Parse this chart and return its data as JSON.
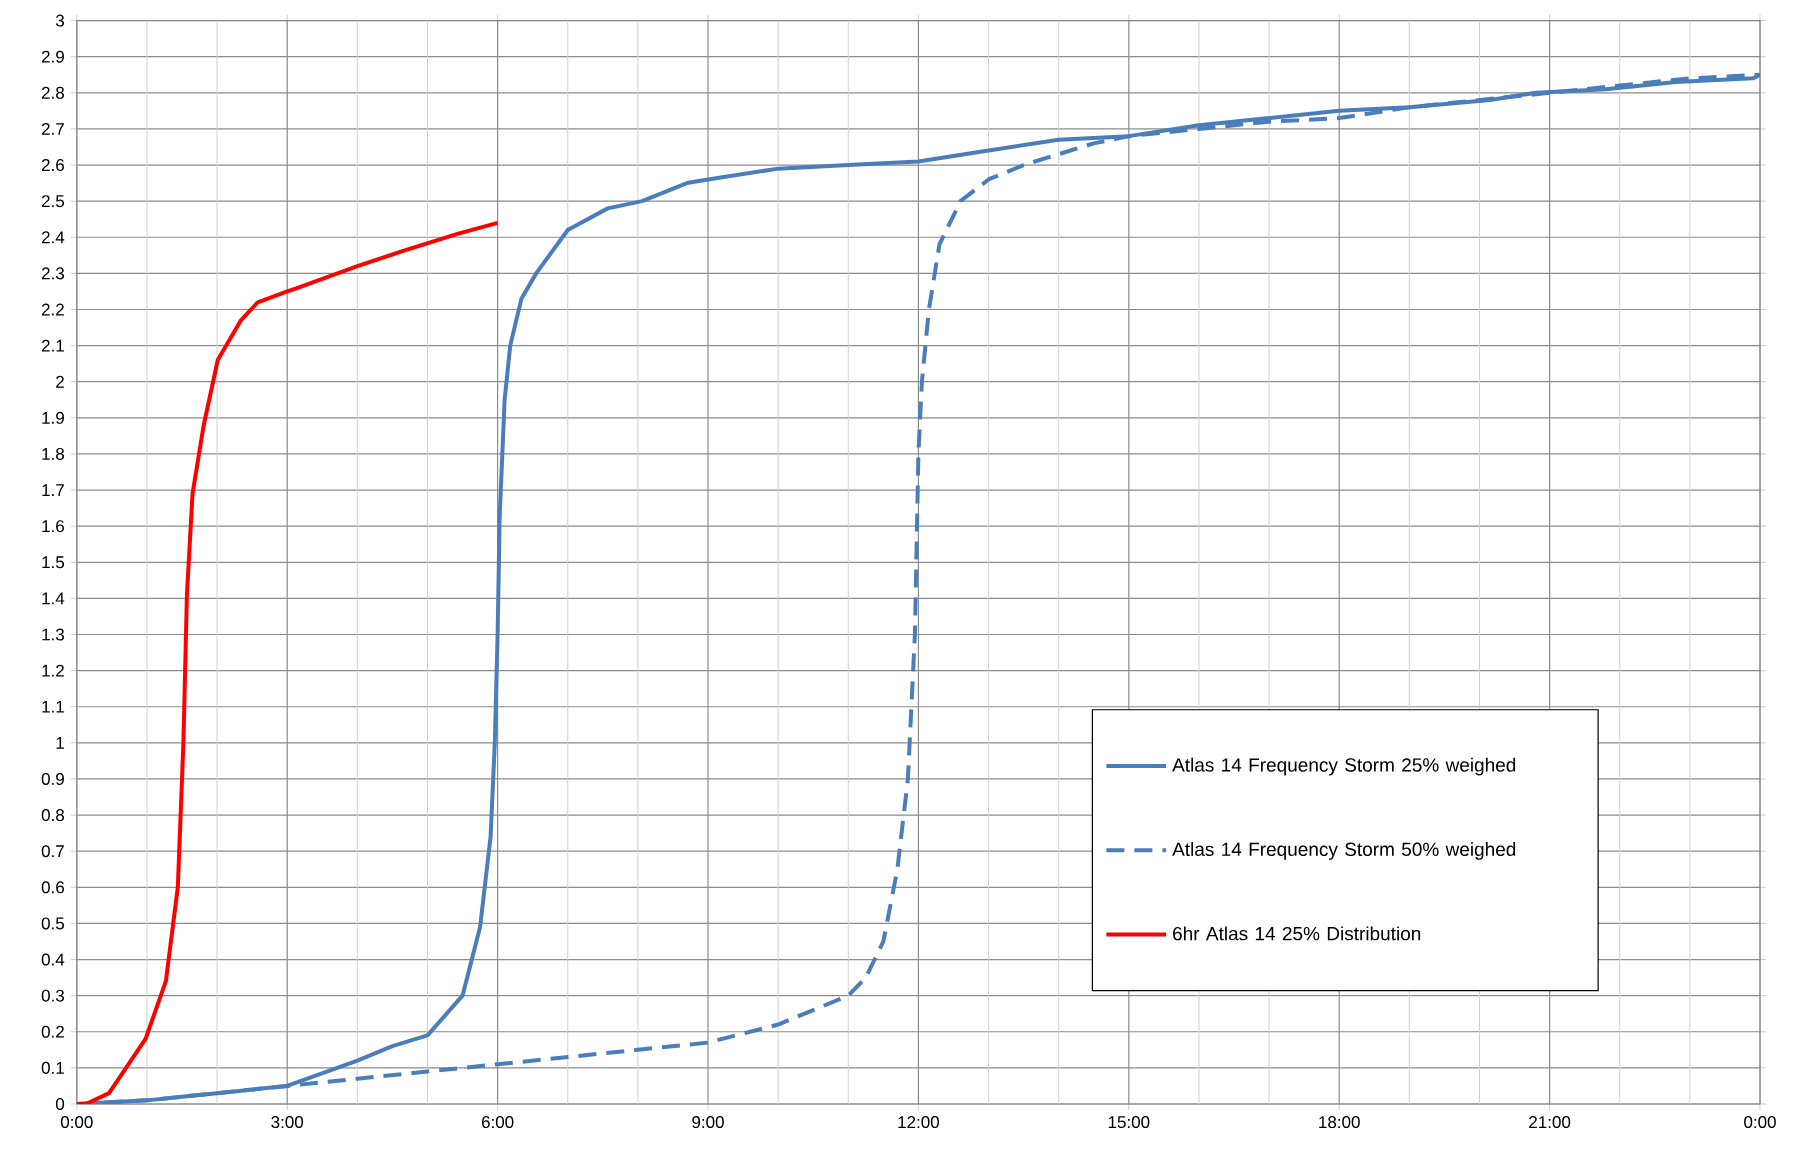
{
  "chart_data": {
    "type": "line",
    "xlim": [
      0,
      24
    ],
    "xticks": [
      {
        "value": 0,
        "label": "0:00"
      },
      {
        "value": 1,
        "label": null
      },
      {
        "value": 2,
        "label": null
      },
      {
        "value": 3,
        "label": "3:00"
      },
      {
        "value": 4,
        "label": null
      },
      {
        "value": 5,
        "label": null
      },
      {
        "value": 6,
        "label": "6:00"
      },
      {
        "value": 7,
        "label": null
      },
      {
        "value": 8,
        "label": null
      },
      {
        "value": 9,
        "label": "9:00"
      },
      {
        "value": 10,
        "label": null
      },
      {
        "value": 11,
        "label": null
      },
      {
        "value": 12,
        "label": "12:00"
      },
      {
        "value": 13,
        "label": null
      },
      {
        "value": 14,
        "label": null
      },
      {
        "value": 15,
        "label": "15:00"
      },
      {
        "value": 16,
        "label": null
      },
      {
        "value": 17,
        "label": null
      },
      {
        "value": 18,
        "label": "18:00"
      },
      {
        "value": 19,
        "label": null
      },
      {
        "value": 20,
        "label": null
      },
      {
        "value": 21,
        "label": "21:00"
      },
      {
        "value": 22,
        "label": null
      },
      {
        "value": 23,
        "label": null
      },
      {
        "value": 24,
        "label": "0:00"
      }
    ],
    "ylim": [
      0,
      3
    ],
    "yticks": [
      0,
      0.1,
      0.2,
      0.3,
      0.4,
      0.5,
      0.6,
      0.7,
      0.8,
      0.9,
      1,
      1.1,
      1.2,
      1.3,
      1.4,
      1.5,
      1.6,
      1.7,
      1.8,
      1.9,
      2,
      2.1,
      2.2,
      2.3,
      2.4,
      2.5,
      2.6,
      2.7,
      2.8,
      2.9,
      3
    ],
    "grid": true,
    "legend": "bottom right",
    "marker": "none",
    "series": [
      {
        "name": "Atlas 14 Frequency Storm 25% weighed",
        "color": "#4a7ebb",
        "line_style": "solid",
        "x": [
          0,
          1,
          1.5,
          2,
          3,
          4,
          4.5,
          5,
          5.5,
          5.75,
          5.9,
          5.96,
          6.0,
          6.03,
          6.1,
          6.18,
          6.34,
          6.55,
          6.7,
          7.0,
          7.57,
          8.06,
          8.7,
          9.0,
          10,
          11,
          12,
          13,
          14,
          15,
          16,
          17,
          18,
          19,
          20.15,
          20.8,
          21.8,
          22.8,
          23.9,
          24
        ],
        "values": [
          0,
          0.01,
          0.02,
          0.03,
          0.05,
          0.12,
          0.16,
          0.19,
          0.3,
          0.49,
          0.74,
          1.0,
          1.3,
          1.63,
          1.95,
          2.1,
          2.23,
          2.3,
          2.34,
          2.42,
          2.48,
          2.5,
          2.55,
          2.56,
          2.59,
          2.6,
          2.61,
          2.64,
          2.67,
          2.68,
          2.71,
          2.73,
          2.75,
          2.76,
          2.78,
          2.8,
          2.81,
          2.83,
          2.84,
          2.85
        ]
      },
      {
        "name": "Atlas 14 Frequency Storm 50% weighed",
        "color": "#4a7ebb",
        "line_style": "dashed",
        "x": [
          0,
          1,
          2,
          3,
          4,
          5,
          6,
          7,
          8,
          9,
          10,
          10.5,
          11,
          11.25,
          11.5,
          11.7,
          11.85,
          11.95,
          12.0,
          12.05,
          12.15,
          12.3,
          12.6,
          13,
          13.5,
          14,
          14.5,
          15,
          16,
          17,
          18,
          19,
          20,
          21,
          22,
          23,
          24
        ],
        "values": [
          0,
          0.01,
          0.03,
          0.05,
          0.07,
          0.09,
          0.11,
          0.13,
          0.15,
          0.17,
          0.22,
          0.26,
          0.3,
          0.35,
          0.45,
          0.65,
          0.9,
          1.3,
          1.8,
          2.0,
          2.2,
          2.38,
          2.5,
          2.56,
          2.6,
          2.63,
          2.66,
          2.68,
          2.7,
          2.72,
          2.73,
          2.76,
          2.78,
          2.8,
          2.82,
          2.84,
          2.85
        ]
      },
      {
        "name": "6hr Atlas 14 25% Distribution",
        "color": "#ff0000",
        "line_style": "solid",
        "x": [
          0,
          0.13,
          0.46,
          0.98,
          1.27,
          1.44,
          1.52,
          1.57,
          1.65,
          1.81,
          2.01,
          2.34,
          2.58,
          3.0,
          3.15,
          4.0,
          4.62,
          5.44,
          6.0
        ],
        "values": [
          0,
          0.0,
          0.03,
          0.18,
          0.34,
          0.6,
          1.0,
          1.41,
          1.69,
          1.88,
          2.06,
          2.17,
          2.22,
          2.25,
          2.26,
          2.32,
          2.36,
          2.41,
          2.44
        ]
      }
    ]
  }
}
